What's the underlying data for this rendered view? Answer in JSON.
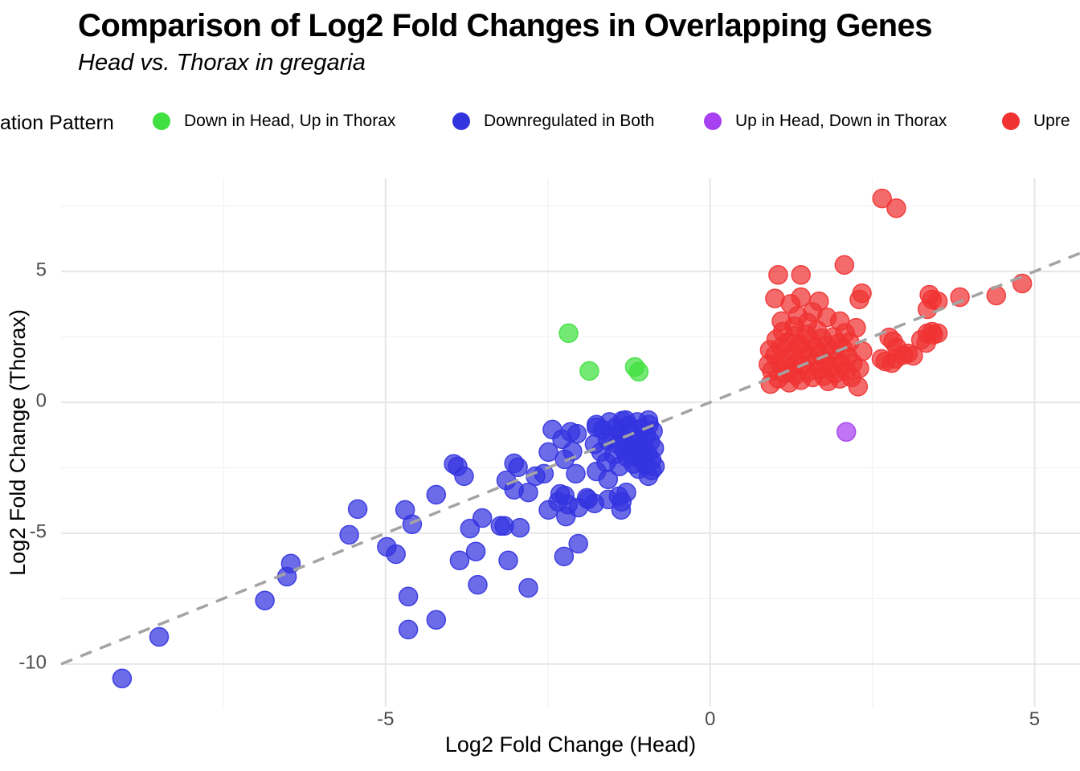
{
  "header": {
    "title": "Comparison of Log2 Fold Changes in Overlapping Genes",
    "subtitle": "Head vs. Thorax in gregaria"
  },
  "legend": {
    "title_visible": "ation Pattern",
    "items": [
      {
        "label": "Down in Head, Up in Thorax",
        "color": "#3fe03f"
      },
      {
        "label": "Downregulated in Both",
        "color": "#3333e0"
      },
      {
        "label": "Up in Head, Down in Thorax",
        "color": "#a640f0"
      },
      {
        "label": "Upre",
        "color": "#f03232"
      }
    ]
  },
  "chart_data": {
    "type": "scatter",
    "title": "Comparison of Log2 Fold Changes in Overlapping Genes",
    "subtitle": "Head vs. Thorax in gregaria",
    "xlabel": "Log2 Fold Change (Head)",
    "ylabel": "Log2 Fold Change (Thorax)",
    "xlim": [
      -10.0,
      5.7
    ],
    "ylim": [
      -11.63,
      8.56
    ],
    "x_major_ticks": [
      -5,
      0,
      5
    ],
    "y_major_ticks": [
      5,
      0,
      -5,
      -10
    ],
    "x_minor_gridlines": [
      -7.5,
      -2.5,
      2.5
    ],
    "y_minor_gridlines": [
      7.5,
      2.5,
      -2.5,
      -7.5
    ],
    "grid": true,
    "legend_position": "top",
    "identity_line": {
      "style": "dashed",
      "color": "#a3a3a3",
      "from": [
        -10.0,
        -10.0
      ],
      "to": [
        5.7,
        5.7
      ]
    },
    "point_radius_px": 11.5,
    "point_opacity": 0.72,
    "series": [
      {
        "name": "Down in Head, Up in Thorax",
        "color": "#3fe03f",
        "points": [
          [
            -2.18,
            2.64
          ],
          [
            -1.86,
            1.2
          ],
          [
            -1.16,
            1.35
          ],
          [
            -1.1,
            1.17
          ]
        ]
      },
      {
        "name": "Downregulated in Both",
        "color": "#3333e0",
        "points": [
          [
            -9.06,
            -10.55
          ],
          [
            -8.49,
            -8.96
          ],
          [
            -6.86,
            -7.57
          ],
          [
            -6.52,
            -6.66
          ],
          [
            -6.46,
            -6.16
          ],
          [
            -5.56,
            -5.06
          ],
          [
            -5.43,
            -4.08
          ],
          [
            -4.98,
            -5.52
          ],
          [
            -4.84,
            -5.8
          ],
          [
            -4.7,
            -4.11
          ],
          [
            -4.65,
            -7.42
          ],
          [
            -4.65,
            -8.68
          ],
          [
            -4.59,
            -4.66
          ],
          [
            -4.22,
            -3.53
          ],
          [
            -4.22,
            -8.31
          ],
          [
            -3.95,
            -2.35
          ],
          [
            -3.89,
            -2.45
          ],
          [
            -3.86,
            -6.04
          ],
          [
            -3.79,
            -2.82
          ],
          [
            -3.7,
            -4.82
          ],
          [
            -3.61,
            -5.7
          ],
          [
            -3.58,
            -6.97
          ],
          [
            -3.51,
            -4.42
          ],
          [
            -3.23,
            -4.72
          ],
          [
            -3.17,
            -4.72
          ],
          [
            -3.14,
            -2.98
          ],
          [
            -3.11,
            -6.04
          ],
          [
            -3.02,
            -3.34
          ],
          [
            -3.02,
            -2.33
          ],
          [
            -2.96,
            -2.48
          ],
          [
            -2.93,
            -4.79
          ],
          [
            -2.8,
            -3.44
          ],
          [
            -2.8,
            -7.09
          ],
          [
            -2.69,
            -2.82
          ],
          [
            -2.56,
            -2.73
          ],
          [
            -2.49,
            -4.11
          ],
          [
            -2.49,
            -1.9
          ],
          [
            -2.43,
            -1.04
          ],
          [
            -2.34,
            -3.8
          ],
          [
            -2.31,
            -3.5
          ],
          [
            -2.28,
            -1.41
          ],
          [
            -2.25,
            -5.89
          ],
          [
            -2.24,
            -2.18
          ],
          [
            -2.24,
            -3.56
          ],
          [
            -2.22,
            -4.36
          ],
          [
            -2.19,
            -3.9
          ],
          [
            -2.15,
            -1.13
          ],
          [
            -2.12,
            -1.87
          ],
          [
            -2.07,
            -2.73
          ],
          [
            -2.05,
            -1.2
          ],
          [
            -2.03,
            -4.02
          ],
          [
            -2.03,
            -5.4
          ],
          [
            -1.9,
            -3.65
          ],
          [
            -1.88,
            -3.71
          ],
          [
            -1.78,
            -1.6
          ],
          [
            -1.78,
            -3.86
          ],
          [
            -1.75,
            -0.95
          ],
          [
            -1.75,
            -2.64
          ],
          [
            -1.57,
            -2.94
          ],
          [
            -1.57,
            -3.71
          ],
          [
            -1.41,
            -3.59
          ],
          [
            -1.37,
            -4.11
          ],
          [
            -1.36,
            -3.8
          ],
          [
            -1.29,
            -3.44
          ],
          [
            -0.95,
            -2.82
          ],
          [
            -1.75,
            -0.85
          ],
          [
            -1.68,
            -1.9
          ],
          [
            -1.65,
            -1.05
          ],
          [
            -1.6,
            -2.3
          ],
          [
            -1.58,
            -1.45
          ],
          [
            -1.55,
            -0.75
          ],
          [
            -1.5,
            -1.3
          ],
          [
            -1.48,
            -2.0
          ],
          [
            -1.45,
            -0.95
          ],
          [
            -1.42,
            -1.6
          ],
          [
            -1.4,
            -2.45
          ],
          [
            -1.38,
            -1.15
          ],
          [
            -1.35,
            -0.7
          ],
          [
            -1.32,
            -1.85
          ],
          [
            -1.3,
            -1.4
          ],
          [
            -1.3,
            -0.68
          ],
          [
            -1.28,
            -2.1
          ],
          [
            -1.25,
            -0.9
          ],
          [
            -1.22,
            -1.65
          ],
          [
            -1.2,
            -2.0
          ],
          [
            -1.2,
            -1.2
          ],
          [
            -1.18,
            -2.35
          ],
          [
            -1.15,
            -1.9
          ],
          [
            -1.12,
            -0.75
          ],
          [
            -1.1,
            -2.55
          ],
          [
            -1.1,
            -1.45
          ],
          [
            -1.08,
            -2.15
          ],
          [
            -1.05,
            -1.0
          ],
          [
            -1.03,
            -1.7
          ],
          [
            -1.0,
            -2.4
          ],
          [
            -0.98,
            -1.25
          ],
          [
            -0.96,
            -1.95
          ],
          [
            -0.95,
            -0.68
          ],
          [
            -0.94,
            -0.85
          ],
          [
            -0.92,
            -1.5
          ],
          [
            -0.9,
            -2.6
          ],
          [
            -0.9,
            -2.2
          ],
          [
            -0.88,
            -1.1
          ],
          [
            -0.86,
            -1.75
          ],
          [
            -0.85,
            -2.45
          ]
        ]
      },
      {
        "name": "Up in Head, Down in Thorax",
        "color": "#a640f0",
        "points": [
          [
            2.1,
            -1.13
          ]
        ]
      },
      {
        "name": "Upre",
        "color": "#f03232",
        "points": [
          [
            2.65,
            7.79
          ],
          [
            2.87,
            7.42
          ],
          [
            2.07,
            5.25
          ],
          [
            1.05,
            4.87
          ],
          [
            1.4,
            4.87
          ],
          [
            4.81,
            4.54
          ],
          [
            2.34,
            4.17
          ],
          [
            3.38,
            4.11
          ],
          [
            4.41,
            4.08
          ],
          [
            1.4,
            4.02
          ],
          [
            3.85,
            4.02
          ],
          [
            1.0,
            3.97
          ],
          [
            2.3,
            3.93
          ],
          [
            3.42,
            3.93
          ],
          [
            3.51,
            3.86
          ],
          [
            1.68,
            3.86
          ],
          [
            1.24,
            3.76
          ],
          [
            3.35,
            3.56
          ],
          [
            1.58,
            3.45
          ],
          [
            1.35,
            3.3
          ],
          [
            1.8,
            3.25
          ],
          [
            2.0,
            3.1
          ],
          [
            3.42,
            2.7
          ],
          [
            3.51,
            2.64
          ],
          [
            3.35,
            2.64
          ],
          [
            3.44,
            2.58
          ],
          [
            2.76,
            2.48
          ],
          [
            3.25,
            2.39
          ],
          [
            2.82,
            2.33
          ],
          [
            3.33,
            2.27
          ],
          [
            2.88,
            2.09
          ],
          [
            3.05,
            1.87
          ],
          [
            3.13,
            1.78
          ],
          [
            2.98,
            1.81
          ],
          [
            2.86,
            1.66
          ],
          [
            2.64,
            1.66
          ],
          [
            2.7,
            1.56
          ],
          [
            2.8,
            1.5
          ],
          [
            0.95,
            1.2
          ],
          [
            1.0,
            1.8
          ],
          [
            1.02,
            2.4
          ],
          [
            1.05,
            0.9
          ],
          [
            1.08,
            1.5
          ],
          [
            1.1,
            2.1
          ],
          [
            1.12,
            2.7
          ],
          [
            1.15,
            1.1
          ],
          [
            1.18,
            1.7
          ],
          [
            1.2,
            2.3
          ],
          [
            1.22,
            0.75
          ],
          [
            1.25,
            1.35
          ],
          [
            1.28,
            1.95
          ],
          [
            1.3,
            2.55
          ],
          [
            1.32,
            1.05
          ],
          [
            1.35,
            1.6
          ],
          [
            1.38,
            2.2
          ],
          [
            1.4,
            0.85
          ],
          [
            1.42,
            1.4
          ],
          [
            1.45,
            2.0
          ],
          [
            1.48,
            2.6
          ],
          [
            1.5,
            1.15
          ],
          [
            1.52,
            1.75
          ],
          [
            1.55,
            2.35
          ],
          [
            1.58,
            0.95
          ],
          [
            1.6,
            1.5
          ],
          [
            1.62,
            2.1
          ],
          [
            1.65,
            2.75
          ],
          [
            1.68,
            1.25
          ],
          [
            1.7,
            1.85
          ],
          [
            1.72,
            2.45
          ],
          [
            1.75,
            1.0
          ],
          [
            1.78,
            1.55
          ],
          [
            1.8,
            2.15
          ],
          [
            1.82,
            0.8
          ],
          [
            1.85,
            1.35
          ],
          [
            1.88,
            1.95
          ],
          [
            1.9,
            2.5
          ],
          [
            1.92,
            1.1
          ],
          [
            1.95,
            1.65
          ],
          [
            1.98,
            2.25
          ],
          [
            2.0,
            0.9
          ],
          [
            2.02,
            1.45
          ],
          [
            2.05,
            2.05
          ],
          [
            2.08,
            2.65
          ],
          [
            2.1,
            1.2
          ],
          [
            2.12,
            1.75
          ],
          [
            2.15,
            2.3
          ],
          [
            2.18,
            0.95
          ],
          [
            2.2,
            1.5
          ],
          [
            2.25,
            2.85
          ],
          [
            1.3,
            2.9
          ],
          [
            1.1,
            3.1
          ],
          [
            1.5,
            3.05
          ],
          [
            0.92,
            2.0
          ],
          [
            0.9,
            1.45
          ],
          [
            0.93,
            0.7
          ],
          [
            2.3,
            1.3
          ],
          [
            2.35,
            1.95
          ],
          [
            2.28,
            0.6
          ]
        ]
      }
    ]
  },
  "colors": {
    "grid_major": "#e6e6e6",
    "grid_minor": "#f2f2f2",
    "tick_text": "#4d4d4d",
    "identity_line": "#a3a3a3"
  }
}
